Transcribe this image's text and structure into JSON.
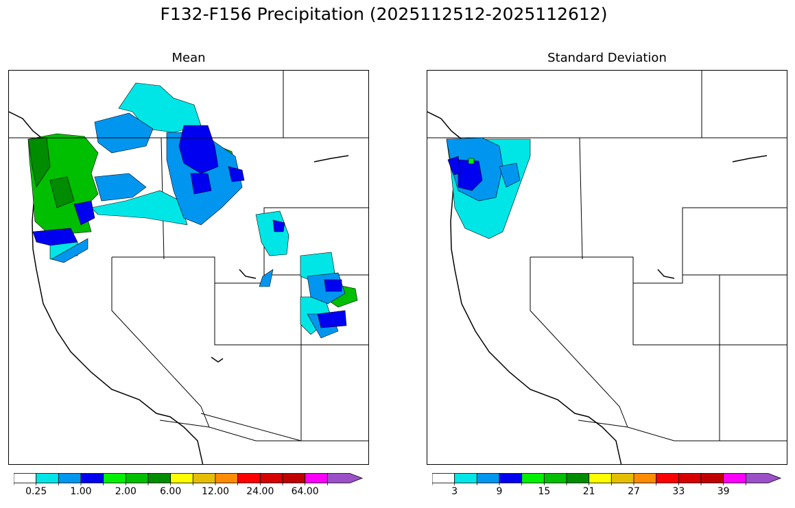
{
  "figure": {
    "title": "F132-F156 Precipitation (2025112512-2025112612)"
  },
  "panels": [
    {
      "title": "Mean",
      "colorbar": {
        "colors": [
          "#ffffff",
          "#00e6e6",
          "#0096f0",
          "#0000f0",
          "#00f000",
          "#00be00",
          "#008c00",
          "#ffff00",
          "#e6be00",
          "#ff8c00",
          "#ff0000",
          "#d70000",
          "#c00000",
          "#ff00ff",
          "#9b50c8"
        ],
        "labels": [
          "0.25",
          "1.00",
          "2.00",
          "6.00",
          "12.00",
          "24.00",
          "64.00"
        ],
        "extend": "max"
      }
    },
    {
      "title": "Standard Deviation",
      "colorbar": {
        "colors": [
          "#ffffff",
          "#00e6e6",
          "#0096f0",
          "#0000f0",
          "#00f000",
          "#00be00",
          "#008c00",
          "#ffff00",
          "#e6be00",
          "#ff8c00",
          "#ff0000",
          "#d70000",
          "#c00000",
          "#ff00ff",
          "#9b50c8"
        ],
        "labels": [
          "3",
          "9",
          "15",
          "21",
          "27",
          "33",
          "39"
        ],
        "extend": "max"
      }
    }
  ]
}
